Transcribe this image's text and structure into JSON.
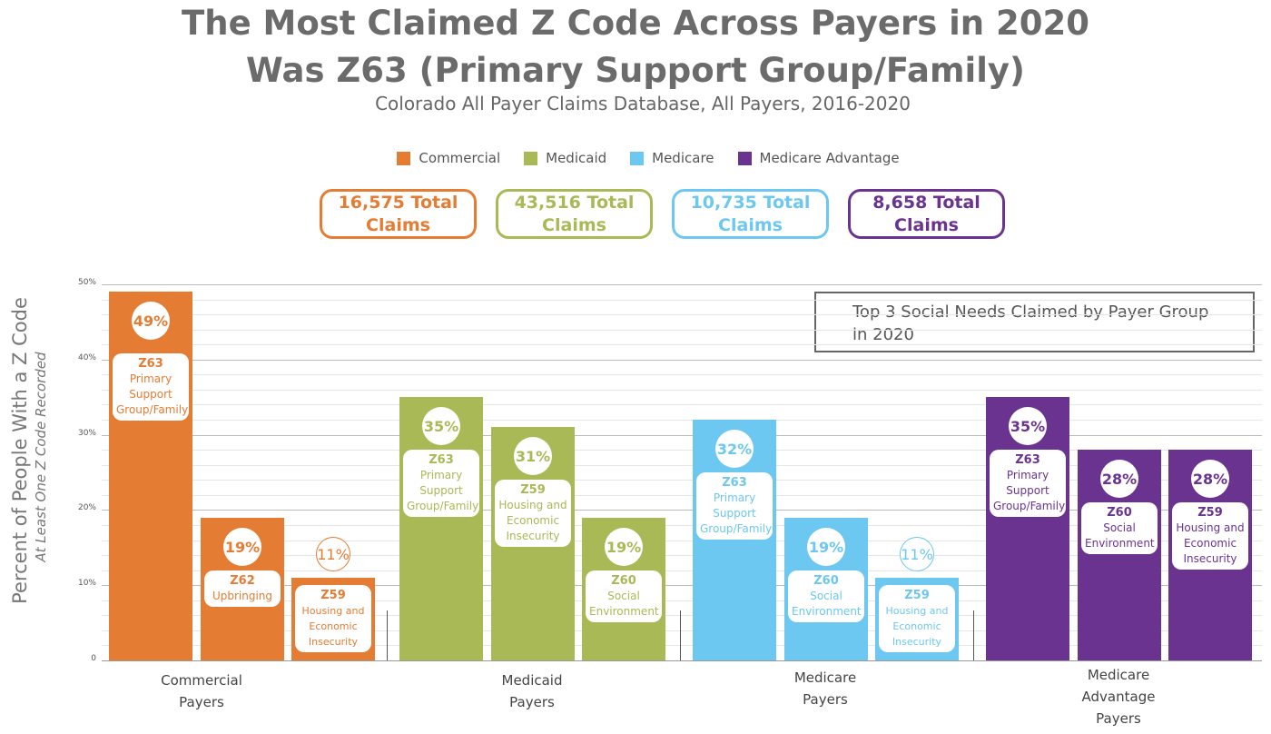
{
  "title": "The Most Claimed Z Code Across Payers in 2020 Was Z63 (Primary Support Group/Family)",
  "subtitle": "Colorado All Payer Claims Database,  All Payers, 2016-2020",
  "colors": {
    "commercial": "#e57c33",
    "medicaid": "#a9b955",
    "medicare": "#6cc8f0",
    "medicare_advantage": "#6a3390"
  },
  "legend": [
    {
      "label": "Commercial",
      "color": "#e57c33"
    },
    {
      "label": "Medicaid",
      "color": "#a9b955"
    },
    {
      "label": "Medicare",
      "color": "#6cc8f0"
    },
    {
      "label": "Medicare  Advantage",
      "color": "#6a3390"
    }
  ],
  "totals": [
    {
      "text": "16,575 Total Claims",
      "color": "#e57c33"
    },
    {
      "text": "43,516 Total Claims",
      "color": "#a9b955"
    },
    {
      "text": "10,735 Total Claims",
      "color": "#6cc8f0"
    },
    {
      "text": "8,658 Total Claims",
      "color": "#6a3390"
    }
  ],
  "annotation": "Top 3 Social Needs Claimed by Payer Group in 2020",
  "chart_data": {
    "type": "bar",
    "ylabel": "Percent of People With a Z Code",
    "ylabel_sub": "At Least One Z Code Recorded",
    "ylim": [
      0,
      50
    ],
    "yticks": [
      "0",
      "10%",
      "20%",
      "30%",
      "40%",
      "50%"
    ],
    "grid": true,
    "groups": [
      {
        "name": "Commercial",
        "label_lines": [
          "Commercial",
          "Payers"
        ],
        "color": "#e57c33",
        "bars": [
          {
            "value": 49,
            "pct": "49%",
            "code": "Z63",
            "desc": "Primary Support Group/Family"
          },
          {
            "value": 19,
            "pct": "19%",
            "code": "Z62",
            "desc": "Upbringing"
          },
          {
            "value": 11,
            "pct": "11%",
            "code": "Z59",
            "desc": "Housing and Economic Insecurity"
          }
        ]
      },
      {
        "name": "Medicaid",
        "label_lines": [
          "Medicaid",
          "Payers"
        ],
        "color": "#a9b955",
        "bars": [
          {
            "value": 35,
            "pct": "35%",
            "code": "Z63",
            "desc": "Primary Support Group/Family"
          },
          {
            "value": 31,
            "pct": "31%",
            "code": "Z59",
            "desc": "Housing and Economic Insecurity"
          },
          {
            "value": 19,
            "pct": "19%",
            "code": "Z60",
            "desc": "Social Environment"
          }
        ]
      },
      {
        "name": "Medicare",
        "label_lines": [
          "Medicare",
          "Payers"
        ],
        "color": "#6cc8f0",
        "bars": [
          {
            "value": 32,
            "pct": "32%",
            "code": "Z63",
            "desc": "Primary Support Group/Family"
          },
          {
            "value": 19,
            "pct": "19%",
            "code": "Z60",
            "desc": "Social Environment"
          },
          {
            "value": 11,
            "pct": "11%",
            "code": "Z59",
            "desc": "Housing and Economic Insecurity"
          }
        ]
      },
      {
        "name": "Medicare Advantage",
        "label_lines": [
          "Medicare",
          "Advantage",
          "Payers"
        ],
        "color": "#6a3390",
        "bars": [
          {
            "value": 35,
            "pct": "35%",
            "code": "Z63",
            "desc": "Primary Support Group/Family"
          },
          {
            "value": 28,
            "pct": "28%",
            "code": "Z60",
            "desc": "Social Environment"
          },
          {
            "value": 28,
            "pct": "28%",
            "code": "Z59",
            "desc": "Housing and Economic Insecurity"
          }
        ]
      }
    ]
  }
}
